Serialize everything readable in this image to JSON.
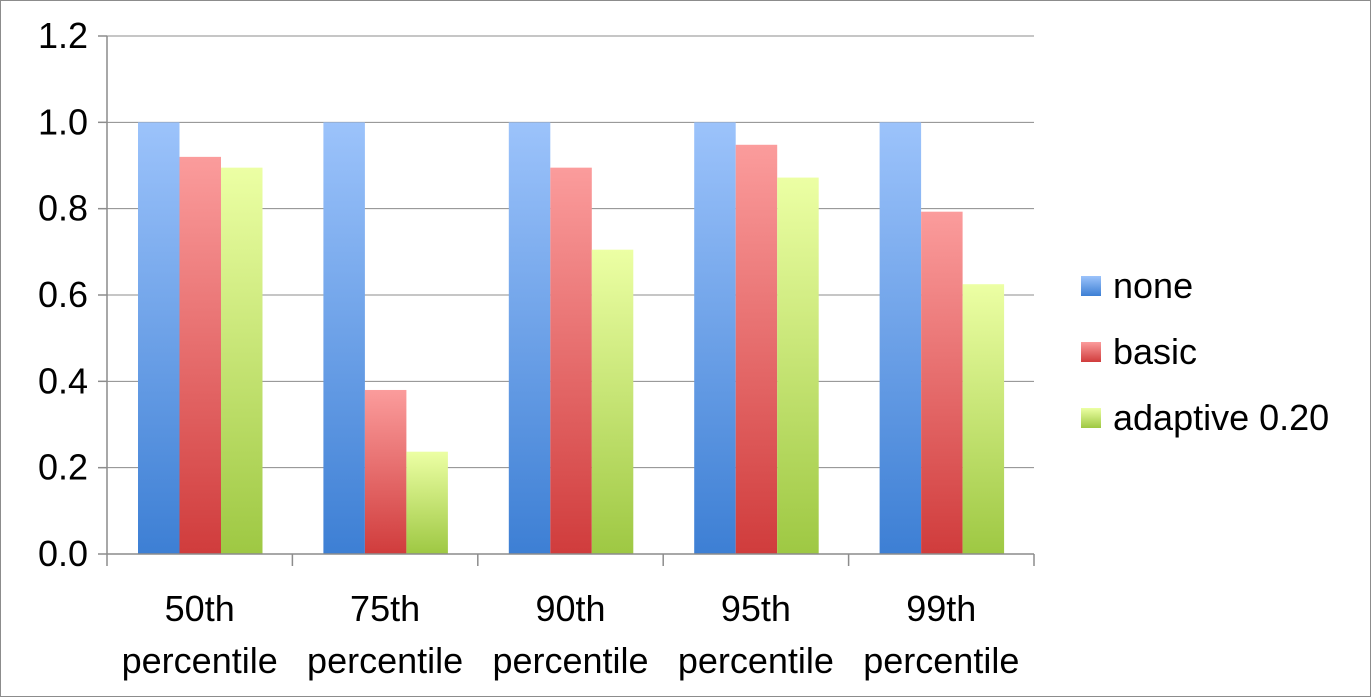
{
  "chart_data": {
    "type": "bar",
    "categories": [
      [
        "50th",
        "percentile"
      ],
      [
        "75th",
        "percentile"
      ],
      [
        "90th",
        "percentile"
      ],
      [
        "95th",
        "percentile"
      ],
      [
        "99th",
        "percentile"
      ]
    ],
    "series": [
      {
        "name": "none",
        "values": [
          1.0,
          1.0,
          1.0,
          1.0,
          1.0
        ],
        "color_top": "#9cc3fb",
        "color_bottom": "#3d7fd4"
      },
      {
        "name": "basic",
        "values": [
          0.92,
          0.38,
          0.895,
          0.948,
          0.793
        ],
        "color_top": "#fb9c9c",
        "color_bottom": "#d03c3c"
      },
      {
        "name": "adaptive 0.20",
        "values": [
          0.895,
          0.237,
          0.705,
          0.872,
          0.625
        ],
        "color_top": "#ecffa4",
        "color_bottom": "#9ec843"
      }
    ],
    "yticks": [
      "0.0",
      "0.2",
      "0.4",
      "0.6",
      "0.8",
      "1.0",
      "1.2"
    ],
    "ylim": [
      0,
      1.2
    ],
    "grid": true,
    "legend_position": "right",
    "title": "",
    "xlabel": "",
    "ylabel": ""
  }
}
